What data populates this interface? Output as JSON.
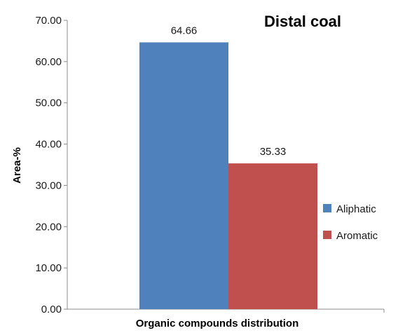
{
  "chart_data": {
    "type": "bar",
    "title": "Distal coal",
    "xlabel": "Organic compounds distribution",
    "ylabel": "Area-%",
    "categories": [
      ""
    ],
    "series": [
      {
        "name": "Aliphatic",
        "values": [
          64.66
        ],
        "color": "#4f81bd",
        "label": "64.66"
      },
      {
        "name": "Aromatic",
        "values": [
          35.33
        ],
        "color": "#c0504d",
        "label": "35.33"
      }
    ],
    "ylim": [
      0,
      70
    ],
    "yticks": [
      "0.00",
      "10.00",
      "20.00",
      "30.00",
      "40.00",
      "50.00",
      "60.00",
      "70.00"
    ],
    "grid": false,
    "legend": "right"
  }
}
